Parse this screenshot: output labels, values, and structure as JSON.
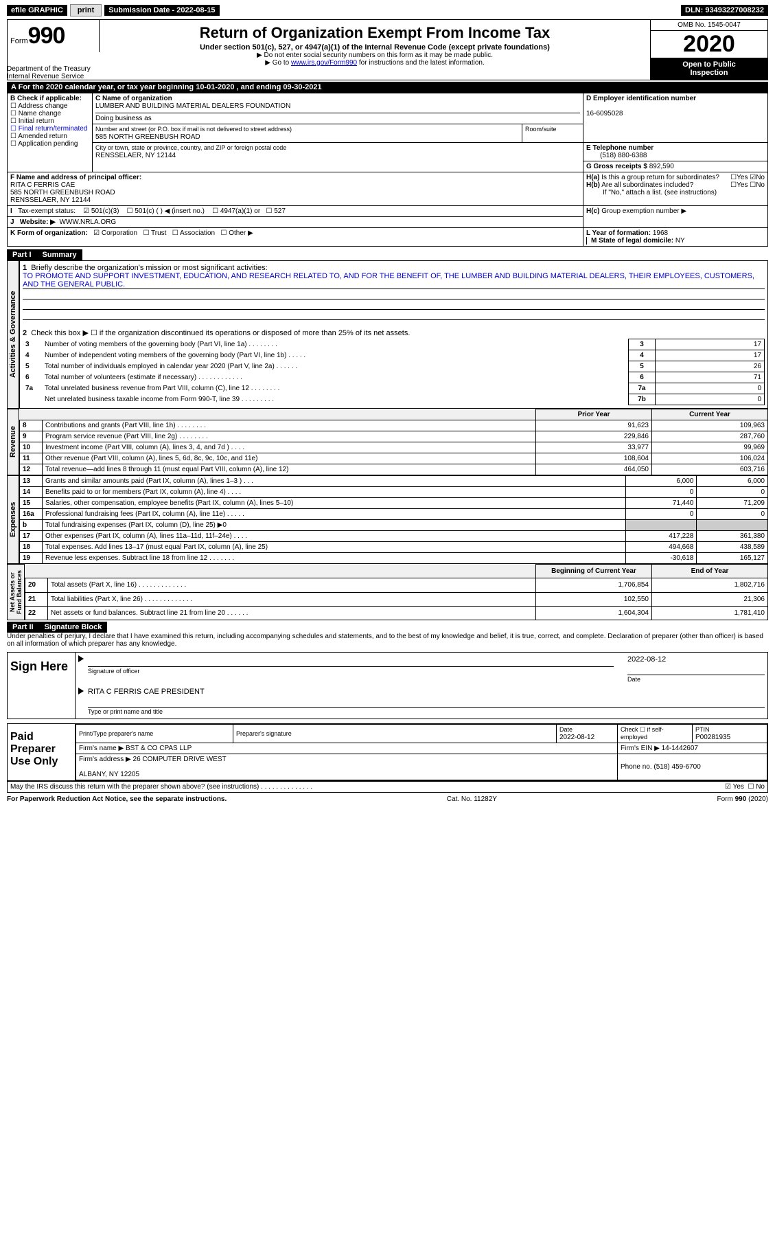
{
  "topbar": {
    "efile": "efile GRAPHIC",
    "print": "print",
    "sub_lbl": "Submission Date - ",
    "sub_val": "2022-08-15",
    "dln_lbl": "DLN: ",
    "dln_val": "93493227008232"
  },
  "header": {
    "form": "Form",
    "num": "990",
    "dept": "Department of the Treasury\nInternal Revenue Service",
    "title": "Return of Organization Exempt From Income Tax",
    "sub": "Under section 501(c), 527, or 4947(a)(1) of the Internal Revenue Code (except private foundations)",
    "note1": "▶ Do not enter social security numbers on this form as it may be made public.",
    "note2a": "▶ Go to ",
    "note2link": "www.irs.gov/Form990",
    "note2b": " for instructions and the latest information.",
    "omb": "OMB No. 1545-0047",
    "year": "2020",
    "inspect": "Open to Public\nInspection"
  },
  "period": "For the 2020 calendar year, or tax year beginning 10-01-2020    , and ending 09-30-2021",
  "boxB": {
    "hdr": "B Check if applicable:",
    "items": [
      "Address change",
      "Name change",
      "Initial return",
      "Final return/terminated",
      "Amended return",
      "Application pending"
    ]
  },
  "boxC": {
    "hdr": "C Name of organization",
    "name": "LUMBER AND BUILDING MATERIAL DEALERS FOUNDATION",
    "dba": "Doing business as",
    "addr_lbl": "Number and street (or P.O. box if mail is not delivered to street address)",
    "addr": "585 NORTH GREENBUSH ROAD",
    "room": "Room/suite",
    "city_lbl": "City or town, state or province, country, and ZIP or foreign postal code",
    "city": "RENSSELAER, NY  12144"
  },
  "boxD": {
    "lbl": "D Employer identification number",
    "val": "16-6095028"
  },
  "boxE": {
    "lbl": "E Telephone number",
    "val": "(518) 880-6388"
  },
  "boxG": {
    "lbl": "G Gross receipts $",
    "val": "892,590"
  },
  "boxF": {
    "lbl": "F  Name and address of principal officer:",
    "name": "RITA C FERRIS CAE",
    "addr": "585 NORTH GREENBUSH ROAD\nRENSSELAER, NY  12144"
  },
  "boxH": {
    "a": "Is this a group return for subordinates?",
    "b": "Are all subordinates included?",
    "note": "If \"No,\" attach a list. (see instructions)",
    "c": "Group exemption number ▶",
    "yes": "Yes",
    "no": "No"
  },
  "boxI": {
    "lbl": "Tax-exempt status:",
    "opts": [
      "501(c)(3)",
      "501(c) (   ) ◀ (insert no.)",
      "4947(a)(1) or",
      "527"
    ]
  },
  "boxJ": {
    "lbl": "Website: ▶",
    "val": "WWW.NRLA.ORG"
  },
  "boxK": {
    "lbl": "K Form of organization:",
    "opts": [
      "Corporation",
      "Trust",
      "Association",
      "Other ▶"
    ]
  },
  "boxL": {
    "lbl": "L Year of formation:",
    "val": "1968"
  },
  "boxM": {
    "lbl": "M State of legal domicile:",
    "val": "NY"
  },
  "part1": {
    "hdr": "Part I",
    "title": "Summary"
  },
  "gov": {
    "label": "Activities & Governance",
    "l1": "Briefly describe the organization's mission or most significant activities:",
    "mission": "TO PROMOTE AND SUPPORT INVESTMENT, EDUCATION, AND RESEARCH RELATED TO, AND FOR THE BENEFIT OF, THE LUMBER AND BUILDING MATERIAL DEALERS, THEIR EMPLOYEES, CUSTOMERS, AND THE GENERAL PUBLIC.",
    "l2": "Check this box ▶ ☐  if the organization discontinued its operations or disposed of more than 25% of its net assets.",
    "rows": [
      {
        "n": "3",
        "t": "Number of voting members of the governing body (Part VI, line 1a)   .    .    .    .    .    .    .    .",
        "b": "3",
        "v": "17"
      },
      {
        "n": "4",
        "t": "Number of independent voting members of the governing body (Part VI, line 1b)   .    .    .    .    .",
        "b": "4",
        "v": "17"
      },
      {
        "n": "5",
        "t": "Total number of individuals employed in calendar year 2020 (Part V, line 2a)   .    .    .    .    .    .",
        "b": "5",
        "v": "26"
      },
      {
        "n": "6",
        "t": "Total number of volunteers (estimate if necessary)   .    .    .    .    .    .    .    .    .    .    .    .",
        "b": "6",
        "v": "71"
      },
      {
        "n": "7a",
        "t": "Total unrelated business revenue from Part VIII, column (C), line 12   .    .    .    .    .    .    .    .",
        "b": "7a",
        "v": "0"
      },
      {
        "n": "",
        "t": "Net unrelated business taxable income from Form 990-T, line 39   .    .    .    .    .    .    .    .    .",
        "b": "7b",
        "v": "0"
      }
    ]
  },
  "cols": {
    "b": "b",
    "py": "Prior Year",
    "cy": "Current Year",
    "boy": "Beginning of Current Year",
    "eoy": "End of Year"
  },
  "rev": {
    "label": "Revenue",
    "rows": [
      {
        "n": "8",
        "t": "Contributions and grants (Part VIII, line 1h)   .    .    .    .    .    .    .    .",
        "py": "91,623",
        "cy": "109,963"
      },
      {
        "n": "9",
        "t": "Program service revenue (Part VIII, line 2g)   .    .    .    .    .    .    .    .",
        "py": "229,846",
        "cy": "287,760"
      },
      {
        "n": "10",
        "t": "Investment income (Part VIII, column (A), lines 3, 4, and 7d )   .    .    .    .",
        "py": "33,977",
        "cy": "99,969"
      },
      {
        "n": "11",
        "t": "Other revenue (Part VIII, column (A), lines 5, 6d, 8c, 9c, 10c, and 11e)",
        "py": "108,604",
        "cy": "106,024"
      },
      {
        "n": "12",
        "t": "Total revenue—add lines 8 through 11 (must equal Part VIII, column (A), line 12)",
        "py": "464,050",
        "cy": "603,716"
      }
    ]
  },
  "exp": {
    "label": "Expenses",
    "rows": [
      {
        "n": "13",
        "t": "Grants and similar amounts paid (Part IX, column (A), lines 1–3 )   .    .    .",
        "py": "6,000",
        "cy": "6,000"
      },
      {
        "n": "14",
        "t": "Benefits paid to or for members (Part IX, column (A), line 4)   .    .    .    .",
        "py": "0",
        "cy": "0"
      },
      {
        "n": "15",
        "t": "Salaries, other compensation, employee benefits (Part IX, column (A), lines 5–10)",
        "py": "71,440",
        "cy": "71,209"
      },
      {
        "n": "16a",
        "t": "Professional fundraising fees (Part IX, column (A), line 11e)   .    .    .    .    .",
        "py": "0",
        "cy": "0"
      },
      {
        "n": "b",
        "t": "Total fundraising expenses (Part IX, column (D), line 25) ▶0",
        "py": "",
        "cy": "",
        "shade": true
      },
      {
        "n": "17",
        "t": "Other expenses (Part IX, column (A), lines 11a–11d, 11f–24e)   .    .    .    .",
        "py": "417,228",
        "cy": "361,380"
      },
      {
        "n": "18",
        "t": "Total expenses. Add lines 13–17 (must equal Part IX, column (A), line 25)",
        "py": "494,668",
        "cy": "438,589"
      },
      {
        "n": "19",
        "t": "Revenue less expenses. Subtract line 18 from line 12   .    .    .    .    .    .    .",
        "py": "-30,618",
        "cy": "165,127"
      }
    ]
  },
  "net": {
    "label": "Net Assets or\nFund Balances",
    "rows": [
      {
        "n": "20",
        "t": "Total assets (Part X, line 16)   .    .    .    .    .    .    .    .    .    .    .    .    .",
        "py": "1,706,854",
        "cy": "1,802,716"
      },
      {
        "n": "21",
        "t": "Total liabilities (Part X, line 26)   .    .    .    .    .    .    .    .    .    .    .    .    .",
        "py": "102,550",
        "cy": "21,306"
      },
      {
        "n": "22",
        "t": "Net assets or fund balances. Subtract line 21 from line 20   .    .    .    .    .    .",
        "py": "1,604,304",
        "cy": "1,781,410"
      }
    ]
  },
  "part2": {
    "hdr": "Part II",
    "title": "Signature Block"
  },
  "penalty": "Under penalties of perjury, I declare that I have examined this return, including accompanying schedules and statements, and to the best of my knowledge and belief, it is true, correct, and complete. Declaration of preparer (other than officer) is based on all information of which preparer has any knowledge.",
  "sign": {
    "here": "Sign Here",
    "sig": "Signature of officer",
    "date_lbl": "Date",
    "date": "2022-08-12",
    "name": "RITA C FERRIS CAE  PRESIDENT",
    "name_lbl": "Type or print name and title"
  },
  "paid": {
    "hdr": "Paid Preparer Use Only",
    "c1": "Print/Type preparer's name",
    "c2": "Preparer's signature",
    "c3": "Date",
    "c3v": "2022-08-12",
    "c4": "Check ☐ if self-employed",
    "c5": "PTIN",
    "c5v": "P00281935",
    "firm_lbl": "Firm's name    ▶",
    "firm": "BST & CO CPAS LLP",
    "ein_lbl": "Firm's EIN ▶",
    "ein": "14-1442607",
    "addr_lbl": "Firm's address ▶",
    "addr": "26 COMPUTER DRIVE WEST\n\nALBANY, NY  12205",
    "phone_lbl": "Phone no.",
    "phone": "(518) 459-6700"
  },
  "discuss": "May the IRS discuss this return with the preparer shown above? (see instructions)   .    .    .    .    .    .    .    .    .    .    .    .    .    .",
  "footer": {
    "l": "For Paperwork Reduction Act Notice, see the separate instructions.",
    "c": "Cat. No. 11282Y",
    "r": "Form 990 (2020)"
  }
}
